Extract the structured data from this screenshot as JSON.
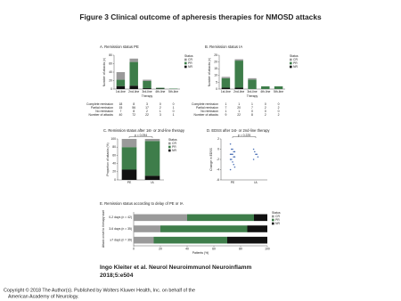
{
  "title": "Figure 3 Clinical outcome of apheresis therapies for NMOSD attacks",
  "citation": [
    "Ingo Kleiter et al. Neurol Neuroimmunol Neuroinflamm",
    "2018;5:e504"
  ],
  "copyright": [
    "Copyright © 2018 The Author(s). Published by Wolters Kluwer Health, Inc. on behalf of the",
    "American Academy of Neurology."
  ],
  "chart_data": [
    {
      "type": "bar",
      "title": "A. Remission status PE",
      "y_label": "Number of attacks (n)",
      "x_label": "Therapy",
      "legend_title": "Status",
      "categories": [
        "1st-line",
        "2nd-line",
        "3rd-line",
        "4th-line",
        "5th-line"
      ],
      "series": [
        {
          "name": "CR",
          "color": "#9a9a9a",
          "values": [
            18,
            8,
            3,
            0,
            0
          ]
        },
        {
          "name": "PR",
          "color": "#3e7d4a",
          "values": [
            15,
            56,
            17,
            2,
            1
          ]
        },
        {
          "name": "NR",
          "color": "#111111",
          "values": [
            7,
            8,
            2,
            1,
            0
          ]
        }
      ],
      "table_row_labels": [
        "Complete remission",
        "Partial remission",
        "No remission",
        "Number of attacks"
      ],
      "totals": [
        40,
        72,
        22,
        3,
        1
      ],
      "ylim": [
        0,
        80
      ],
      "yticks": [
        0,
        20,
        40,
        60,
        80
      ]
    },
    {
      "type": "bar",
      "title": "B. Remission status IA",
      "y_label": "Number of attacks (n)",
      "x_label": "Therapy",
      "legend_title": "Status",
      "categories": [
        "1st-line",
        "2nd-line",
        "3rd-line",
        "4th-line",
        "5th-line"
      ],
      "series": [
        {
          "name": "CR",
          "color": "#9a9a9a",
          "values": [
            1,
            1,
            1,
            0,
            0
          ]
        },
        {
          "name": "PR",
          "color": "#3e7d4a",
          "values": [
            7,
            20,
            7,
            2,
            2
          ]
        },
        {
          "name": "NR",
          "color": "#111111",
          "values": [
            1,
            1,
            0,
            0,
            0
          ]
        }
      ],
      "table_row_labels": [
        "Complete remission",
        "Partial remission",
        "No remission",
        "Number of attacks"
      ],
      "totals": [
        9,
        22,
        8,
        2,
        2
      ],
      "ylim": [
        0,
        25
      ],
      "yticks": [
        0,
        5,
        10,
        15,
        20,
        25
      ]
    },
    {
      "type": "bar",
      "title": "C. Remission status after 1st- or 2nd-line therapy",
      "y_label": "Proportion of attacks (%)",
      "legend_title": "Status",
      "annotation": "p = 0.094",
      "categories": [
        "PE",
        "IA"
      ],
      "series": [
        {
          "name": "CR",
          "color": "#9a9a9a",
          "values": [
            20,
            5
          ]
        },
        {
          "name": "PR",
          "color": "#3e7d4a",
          "values": [
            55,
            85
          ]
        },
        {
          "name": "NR",
          "color": "#111111",
          "values": [
            25,
            10
          ]
        }
      ],
      "ylim": [
        0,
        100
      ],
      "yticks": [
        0,
        20,
        40,
        60,
        80,
        100
      ]
    },
    {
      "type": "strip",
      "title": "D. EDSS after 1st- or 2nd-line therapy",
      "y_label": "Change in EDSS",
      "annotation": "p = 0.225",
      "categories": [
        "PE",
        "IA"
      ],
      "color": "#4a6fb5",
      "values": [
        [
          1,
          0,
          0,
          -0.5,
          -0.5,
          -1,
          -1,
          -1,
          -1.5,
          -1.5,
          -2,
          -2,
          -2.5,
          -3,
          -3.5,
          -4
        ],
        [
          0,
          -0.5,
          -1,
          -1,
          -1.5,
          -2
        ]
      ],
      "ylim": [
        -6,
        2
      ],
      "yticks": [
        -6,
        -4,
        -2,
        0,
        2
      ]
    },
    {
      "type": "barh",
      "title": "E. Remission status according to delay of PE or IA",
      "y_label": "Attack onset to therapy start",
      "x_label": "Patients (%)",
      "legend_title": "Status",
      "categories": [
        "0-2 days (n = 42)",
        "3-6 days (n = 35)",
        "≥7 days (n = 39)"
      ],
      "series": [
        {
          "name": "CR",
          "color": "#9a9a9a",
          "values": [
            40,
            20,
            15
          ]
        },
        {
          "name": "PR",
          "color": "#3e7d4a",
          "values": [
            50,
            65,
            55
          ]
        },
        {
          "name": "NR",
          "color": "#111111",
          "values": [
            10,
            15,
            30
          ]
        }
      ],
      "xlim": [
        0,
        100
      ],
      "xticks": [
        0,
        20,
        40,
        60,
        80,
        100
      ]
    }
  ]
}
